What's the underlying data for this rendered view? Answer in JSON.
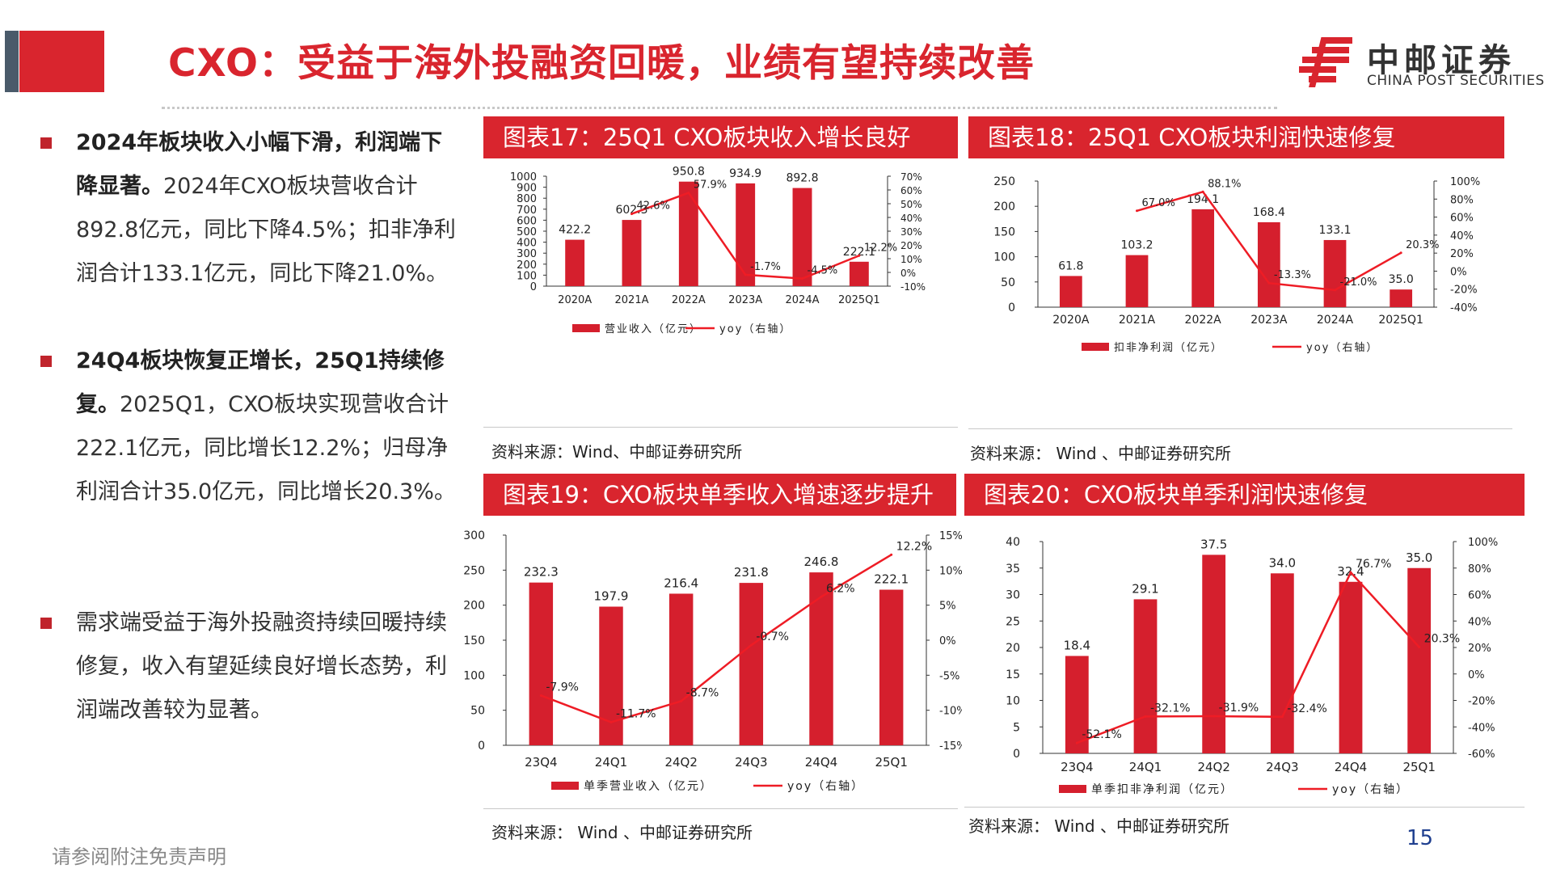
{
  "header": {
    "title": "CXO：受益于海外投融资回暖，业绩有望持续改善",
    "logo_cn": "中邮证券",
    "logo_en": "CHINA POST SECURITIES"
  },
  "bullets": [
    {
      "bold": "2024年板块收入小幅下滑，利润端下降显著。",
      "text": "2024年CXO板块营收合计892.8亿元，同比下降4.5%；扣非净利润合计133.1亿元，同比下降21.0%。"
    },
    {
      "bold": "24Q4板块恢复正增长，25Q1持续修复。",
      "text": "2025Q1，CXO板块实现营收合计222.1亿元，同比增长12.2%；归母净利润合计35.0亿元，同比增长20.3%。"
    },
    {
      "bold": "",
      "text": "需求端受益于海外投融资持续回暖持续修复，收入有望延续良好增长态势，利润端改善较为显著。"
    }
  ],
  "footer": {
    "disclaimer": "请参阅附注免责声明",
    "page": "15"
  },
  "colors": {
    "accent": "#d9252e",
    "bar": "#d51f2d",
    "line": "#ee1c25"
  },
  "panels": [
    {
      "title": "图表17：25Q1 CXO板块收入增长良好",
      "source": "资料来源：Wind、中邮证券研究所"
    },
    {
      "title": "图表18：25Q1 CXO板块利润快速修复",
      "source": "资料来源：  Wind 、中邮证券研究所"
    },
    {
      "title": "图表19：CXO板块单季收入增速逐步提升",
      "source": "资料来源：  Wind 、中邮证券研究所"
    },
    {
      "title": "图表20：CXO板块单季利润快速修复",
      "source": "资料来源：  Wind 、中邮证券研究所"
    }
  ],
  "chart_data": [
    {
      "type": "bar+line",
      "categories": [
        "2020A",
        "2021A",
        "2022A",
        "2023A",
        "2024A",
        "2025Q1"
      ],
      "bar_series": {
        "name": "营业收入（亿元）",
        "values": [
          422.2,
          602.3,
          950.8,
          934.9,
          892.8,
          222.1
        ],
        "labels": [
          "422.2",
          "602.3",
          "950.8",
          "934.9",
          "892.8",
          "222.1"
        ]
      },
      "line_series": {
        "name": "yoy（右轴）",
        "values": [
          null,
          42.6,
          57.9,
          -1.7,
          -4.5,
          12.2
        ],
        "labels": [
          "",
          "42.6%",
          "57.9%",
          "-1.7%",
          "-4.5%",
          "12.2%"
        ]
      },
      "ylim": [
        0,
        1000
      ],
      "yticks": [
        0,
        100,
        200,
        300,
        400,
        500,
        600,
        700,
        800,
        900,
        1000
      ],
      "y2lim": [
        -10,
        70
      ],
      "y2ticks": [
        "-10%",
        "0%",
        "10%",
        "20%",
        "30%",
        "40%",
        "50%",
        "60%",
        "70%"
      ],
      "legend": "bottom"
    },
    {
      "type": "bar+line",
      "categories": [
        "2020A",
        "2021A",
        "2022A",
        "2023A",
        "2024A",
        "2025Q1"
      ],
      "bar_series": {
        "name": "扣非净利润（亿元）",
        "values": [
          61.8,
          103.2,
          194.1,
          168.4,
          133.1,
          35.0
        ],
        "labels": [
          "61.8",
          "103.2",
          "194.1",
          "168.4",
          "133.1",
          "35.0"
        ]
      },
      "line_series": {
        "name": "yoy（右轴）",
        "values": [
          null,
          67.0,
          88.1,
          -13.3,
          -21.0,
          20.3
        ],
        "labels": [
          "",
          "67.0%",
          "88.1%",
          "-13.3%",
          "-21.0%",
          "20.3%"
        ]
      },
      "ylim": [
        0,
        250
      ],
      "yticks": [
        0,
        50,
        100,
        150,
        200,
        250
      ],
      "y2lim": [
        -40,
        100
      ],
      "y2ticks": [
        "-40%",
        "-20%",
        "0%",
        "20%",
        "40%",
        "60%",
        "80%",
        "100%"
      ],
      "legend": "bottom"
    },
    {
      "type": "bar+line",
      "categories": [
        "23Q4",
        "24Q1",
        "24Q2",
        "24Q3",
        "24Q4",
        "25Q1"
      ],
      "bar_series": {
        "name": "单季营业收入（亿元）",
        "values": [
          232.3,
          197.9,
          216.4,
          231.8,
          246.8,
          222.1
        ],
        "labels": [
          "232.3",
          "197.9",
          "216.4",
          "231.8",
          "246.8",
          "222.1"
        ]
      },
      "line_series": {
        "name": "yoy（右轴）",
        "values": [
          -7.9,
          -11.7,
          -8.7,
          -0.7,
          6.2,
          12.2
        ],
        "labels": [
          "-7.9%",
          "-11.7%",
          "-8.7%",
          "-0.7%",
          "6.2%",
          "12.2%"
        ]
      },
      "ylim": [
        0,
        300
      ],
      "yticks": [
        0,
        50,
        100,
        150,
        200,
        250,
        300
      ],
      "y2lim": [
        -15,
        15
      ],
      "y2ticks": [
        "-15%",
        "-10%",
        "-5%",
        "0%",
        "5%",
        "10%",
        "15%"
      ],
      "legend": "bottom"
    },
    {
      "type": "bar+line",
      "categories": [
        "23Q4",
        "24Q1",
        "24Q2",
        "24Q3",
        "24Q4",
        "25Q1"
      ],
      "bar_series": {
        "name": "单季扣非净利润（亿元）",
        "values": [
          18.4,
          29.1,
          37.5,
          34.0,
          32.4,
          35.0
        ],
        "labels": [
          "18.4",
          "29.1",
          "37.5",
          "34.0",
          "32.4",
          "35.0"
        ]
      },
      "line_series": {
        "name": "yoy（右轴）",
        "values": [
          -52.1,
          -32.1,
          -31.9,
          -32.4,
          76.7,
          20.3
        ],
        "labels": [
          "-52.1%",
          "-32.1%",
          "-31.9%",
          "-32.4%",
          "76.7%",
          "20.3%"
        ]
      },
      "ylim": [
        0,
        40
      ],
      "yticks": [
        0,
        5,
        10,
        15,
        20,
        25,
        30,
        35,
        40
      ],
      "y2lim": [
        -60,
        100
      ],
      "y2ticks": [
        "-60%",
        "-40%",
        "-20%",
        "0%",
        "20%",
        "40%",
        "60%",
        "80%",
        "100%"
      ],
      "legend": "bottom"
    }
  ]
}
